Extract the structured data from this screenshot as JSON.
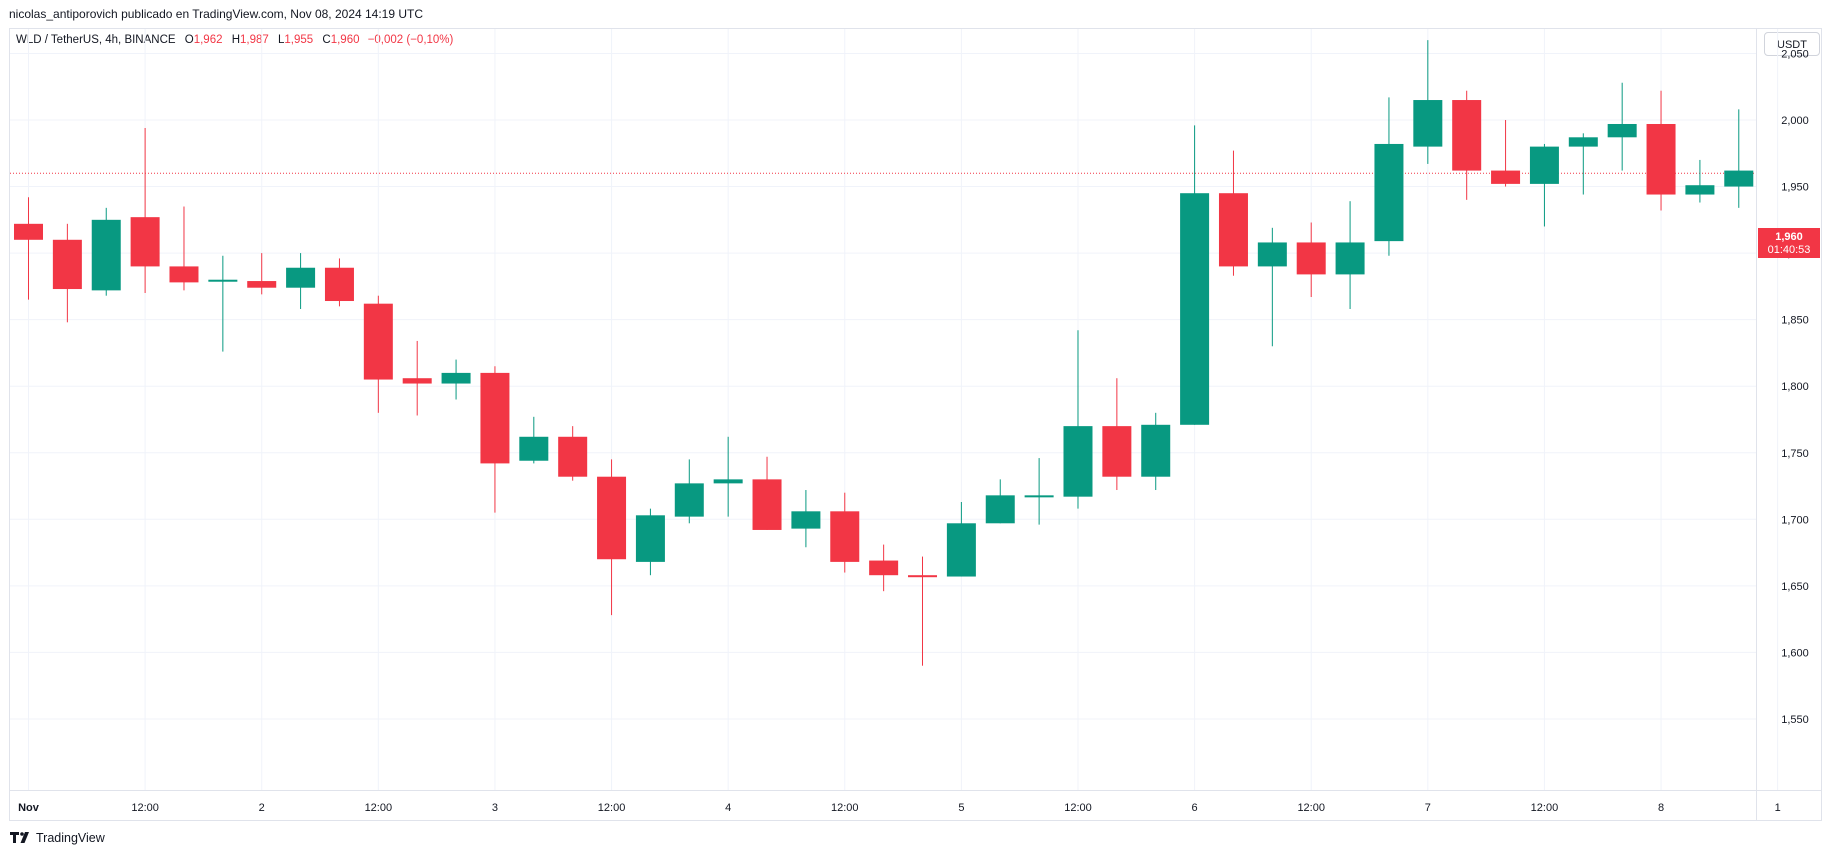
{
  "header": {
    "publisher": "nicolas_antiporovich publicado en TradingView.com, Nov 08, 2024 14:19 UTC"
  },
  "legend": {
    "symbol": "WLD / TetherUS, 4h, BINANCE",
    "open_label": "O",
    "open": "1,962",
    "high_label": "H",
    "high": "1,987",
    "low_label": "L",
    "low": "1,955",
    "close_label": "C",
    "close": "1,960",
    "change": "−0,002 (−0,10%)"
  },
  "toolbar": {
    "currency": "USDT"
  },
  "last_price": {
    "price": "1,960",
    "countdown": "01:40:53"
  },
  "footer": {
    "brand": "TradingView"
  },
  "colors": {
    "up": "#089981",
    "down": "#f23645",
    "grid": "#f0f3fa",
    "text": "#131722"
  },
  "chart_data": {
    "type": "candlestick",
    "ylim": [
      1.53,
      2.1
    ],
    "y_ticks": [
      {
        "value": 2.05,
        "label": "2,050"
      },
      {
        "value": 2.0,
        "label": "2,000"
      },
      {
        "value": 1.95,
        "label": "1,950"
      },
      {
        "value": 1.9,
        "label": "1,900"
      },
      {
        "value": 1.85,
        "label": "1,850"
      },
      {
        "value": 1.8,
        "label": "1,800"
      },
      {
        "value": 1.75,
        "label": "1,750"
      },
      {
        "value": 1.7,
        "label": "1,700"
      },
      {
        "value": 1.65,
        "label": "1,650"
      },
      {
        "value": 1.6,
        "label": "1,600"
      },
      {
        "value": 1.55,
        "label": "1,550"
      }
    ],
    "x_ticks": [
      {
        "index": 0,
        "label": "Nov",
        "bold": true
      },
      {
        "index": 3,
        "label": "12:00"
      },
      {
        "index": 6,
        "label": "2"
      },
      {
        "index": 9,
        "label": "12:00"
      },
      {
        "index": 12,
        "label": "3"
      },
      {
        "index": 15,
        "label": "12:00"
      },
      {
        "index": 18,
        "label": "4"
      },
      {
        "index": 21,
        "label": "12:00"
      },
      {
        "index": 24,
        "label": "5"
      },
      {
        "index": 27,
        "label": "12:00"
      },
      {
        "index": 30,
        "label": "6"
      },
      {
        "index": 33,
        "label": "12:00"
      },
      {
        "index": 36,
        "label": "7"
      },
      {
        "index": 39,
        "label": "12:00"
      },
      {
        "index": 42,
        "label": "8"
      },
      {
        "index": 45,
        "label": "1"
      }
    ],
    "last_price": 1.96,
    "candles": [
      {
        "o": 1.922,
        "h": 1.942,
        "l": 1.865,
        "c": 1.91
      },
      {
        "o": 1.91,
        "h": 1.922,
        "l": 1.848,
        "c": 1.873
      },
      {
        "o": 1.872,
        "h": 1.934,
        "l": 1.868,
        "c": 1.925
      },
      {
        "o": 1.927,
        "h": 1.994,
        "l": 1.87,
        "c": 1.89
      },
      {
        "o": 1.89,
        "h": 1.935,
        "l": 1.872,
        "c": 1.878
      },
      {
        "o": 1.879,
        "h": 1.898,
        "l": 1.826,
        "c": 1.88
      },
      {
        "o": 1.879,
        "h": 1.9,
        "l": 1.869,
        "c": 1.874
      },
      {
        "o": 1.874,
        "h": 1.9,
        "l": 1.858,
        "c": 1.889
      },
      {
        "o": 1.889,
        "h": 1.896,
        "l": 1.86,
        "c": 1.864
      },
      {
        "o": 1.862,
        "h": 1.868,
        "l": 1.78,
        "c": 1.805
      },
      {
        "o": 1.806,
        "h": 1.834,
        "l": 1.778,
        "c": 1.802
      },
      {
        "o": 1.802,
        "h": 1.82,
        "l": 1.79,
        "c": 1.81
      },
      {
        "o": 1.81,
        "h": 1.815,
        "l": 1.705,
        "c": 1.742
      },
      {
        "o": 1.744,
        "h": 1.777,
        "l": 1.742,
        "c": 1.762
      },
      {
        "o": 1.762,
        "h": 1.77,
        "l": 1.729,
        "c": 1.732
      },
      {
        "o": 1.732,
        "h": 1.745,
        "l": 1.628,
        "c": 1.67
      },
      {
        "o": 1.668,
        "h": 1.708,
        "l": 1.658,
        "c": 1.703
      },
      {
        "o": 1.702,
        "h": 1.745,
        "l": 1.697,
        "c": 1.727
      },
      {
        "o": 1.727,
        "h": 1.762,
        "l": 1.702,
        "c": 1.73
      },
      {
        "o": 1.73,
        "h": 1.747,
        "l": 1.692,
        "c": 1.692
      },
      {
        "o": 1.693,
        "h": 1.722,
        "l": 1.679,
        "c": 1.706
      },
      {
        "o": 1.706,
        "h": 1.72,
        "l": 1.66,
        "c": 1.668
      },
      {
        "o": 1.669,
        "h": 1.681,
        "l": 1.646,
        "c": 1.658
      },
      {
        "o": 1.658,
        "h": 1.672,
        "l": 1.59,
        "c": 1.657
      },
      {
        "o": 1.657,
        "h": 1.713,
        "l": 1.657,
        "c": 1.697
      },
      {
        "o": 1.697,
        "h": 1.73,
        "l": 1.697,
        "c": 1.718
      },
      {
        "o": 1.718,
        "h": 1.746,
        "l": 1.696,
        "c": 1.718
      },
      {
        "o": 1.717,
        "h": 1.842,
        "l": 1.708,
        "c": 1.77
      },
      {
        "o": 1.77,
        "h": 1.806,
        "l": 1.722,
        "c": 1.732
      },
      {
        "o": 1.732,
        "h": 1.78,
        "l": 1.722,
        "c": 1.771
      },
      {
        "o": 1.771,
        "h": 1.996,
        "l": 1.771,
        "c": 1.945
      },
      {
        "o": 1.945,
        "h": 1.977,
        "l": 1.883,
        "c": 1.89
      },
      {
        "o": 1.89,
        "h": 1.919,
        "l": 1.83,
        "c": 1.908
      },
      {
        "o": 1.908,
        "h": 1.923,
        "l": 1.867,
        "c": 1.884
      },
      {
        "o": 1.884,
        "h": 1.939,
        "l": 1.858,
        "c": 1.908
      },
      {
        "o": 1.909,
        "h": 2.017,
        "l": 1.898,
        "c": 1.982
      },
      {
        "o": 1.98,
        "h": 2.06,
        "l": 1.967,
        "c": 2.015
      },
      {
        "o": 2.015,
        "h": 2.022,
        "l": 1.94,
        "c": 1.962
      },
      {
        "o": 1.962,
        "h": 2.0,
        "l": 1.95,
        "c": 1.952
      },
      {
        "o": 1.952,
        "h": 1.982,
        "l": 1.92,
        "c": 1.98
      },
      {
        "o": 1.98,
        "h": 1.99,
        "l": 1.944,
        "c": 1.987
      },
      {
        "o": 1.987,
        "h": 2.028,
        "l": 1.962,
        "c": 1.997
      },
      {
        "o": 1.997,
        "h": 2.022,
        "l": 1.932,
        "c": 1.944
      },
      {
        "o": 1.944,
        "h": 1.97,
        "l": 1.938,
        "c": 1.951
      },
      {
        "o": 1.95,
        "h": 2.008,
        "l": 1.934,
        "c": 1.962
      }
    ]
  }
}
